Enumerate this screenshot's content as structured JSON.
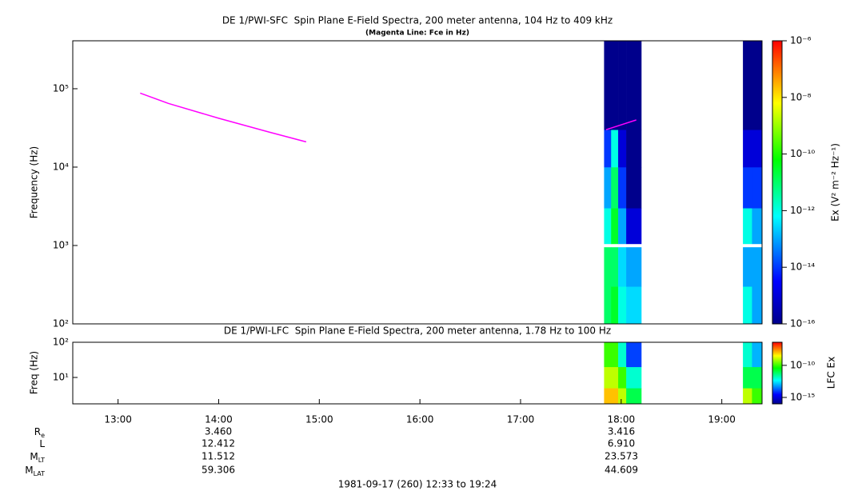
{
  "chart_data": [
    {
      "type": "spectrogram",
      "title": "DE 1/PWI-SFC  Spin Plane E-Field Spectra, 200 meter antenna, 104 Hz to 409 kHz",
      "subtitle": "(Magenta Line: Fce in Hz)",
      "ylabel": "Frequency (Hz)",
      "xlim": [
        12.55,
        19.4
      ],
      "ylim": [
        100,
        409000
      ],
      "log_y": true,
      "yticks": [
        {
          "value": 100,
          "label": "10²"
        },
        {
          "value": 1000,
          "label": "10³"
        },
        {
          "value": 10000,
          "label": "10⁴"
        },
        {
          "value": 100000,
          "label": "10⁵"
        }
      ],
      "colorbar": {
        "label": "Ex (V² m⁻² Hz⁻¹)",
        "lim": [
          1e-16,
          1e-06
        ],
        "ticks": [
          {
            "value": 1e-16,
            "label": "10⁻¹⁶"
          },
          {
            "value": 1e-14,
            "label": "10⁻¹⁴"
          },
          {
            "value": 1e-12,
            "label": "10⁻¹²"
          },
          {
            "value": 1e-10,
            "label": "10⁻¹⁰"
          },
          {
            "value": 1e-08,
            "label": "10⁻⁸"
          },
          {
            "value": 1e-06,
            "label": "10⁻⁶"
          }
        ]
      },
      "blocks": [
        {
          "time_bins": [
            17.83,
            17.9,
            17.97,
            18.05,
            18.2
          ],
          "freq_bins": [
            100,
            300,
            950
          ],
          "values": [
            [
              1e-11,
              3e-11,
              1e-12,
              3e-13
            ],
            [
              1e-11,
              1e-11,
              3e-13,
              1e-13
            ]
          ]
        },
        {
          "time_bins": [
            17.83,
            17.9,
            17.97,
            18.05,
            18.2
          ],
          "freq_bins": [
            1050,
            3000,
            10000,
            30000,
            409000
          ],
          "values": [
            [
              1e-12,
              3e-11,
              1e-13,
              1e-15
            ],
            [
              1e-13,
              1e-11,
              1e-14,
              1e-16
            ],
            [
              1e-14,
              1e-12,
              1e-15,
              1e-16
            ],
            [
              1e-16,
              1e-16,
              1e-16,
              1e-16
            ]
          ]
        },
        {
          "time_bins": [
            19.21,
            19.3,
            19.4
          ],
          "freq_bins": [
            100,
            300,
            950
          ],
          "values": [
            [
              1e-12,
              1e-13
            ],
            [
              1e-13,
              1e-13
            ]
          ]
        },
        {
          "time_bins": [
            19.21,
            19.3,
            19.4
          ],
          "freq_bins": [
            1050,
            3000,
            10000,
            30000,
            409000
          ],
          "values": [
            [
              1e-12,
              1e-13
            ],
            [
              1e-14,
              1e-14
            ],
            [
              1e-15,
              1e-15
            ],
            [
              1e-16,
              1e-16
            ]
          ]
        }
      ],
      "series": [
        {
          "color": "#ff00ff",
          "x": [
            13.22,
            13.5,
            14.0,
            14.5,
            14.87,
            null,
            17.85,
            18.15
          ],
          "values": [
            88000,
            65000,
            42000,
            28000,
            21000,
            null,
            30000,
            40000
          ]
        }
      ]
    },
    {
      "type": "spectrogram",
      "title": "DE 1/PWI-LFC  Spin Plane E-Field Spectra, 200 meter antenna, 1.78 Hz to 100 Hz",
      "ylabel": "Freq (Hz)",
      "xlim": [
        12.55,
        19.4
      ],
      "ylim": [
        1.78,
        100
      ],
      "log_y": true,
      "yticks": [
        {
          "value": 10,
          "label": "10¹"
        },
        {
          "value": 100,
          "label": "10²"
        }
      ],
      "xticks": [
        {
          "value": 13,
          "label": "13:00"
        },
        {
          "value": 14,
          "label": "14:00"
        },
        {
          "value": 15,
          "label": "15:00"
        },
        {
          "value": 16,
          "label": "16:00"
        },
        {
          "value": 17,
          "label": "17:00"
        },
        {
          "value": 18,
          "label": "18:00"
        },
        {
          "value": 19,
          "label": "19:00"
        }
      ],
      "colorbar": {
        "label": "LFC Ex",
        "lim": [
          1e-16,
          4e-07
        ],
        "ticks": [
          {
            "value": 1e-15,
            "label": "10⁻¹⁵"
          },
          {
            "value": 1e-10,
            "label": "10⁻¹⁰"
          }
        ]
      },
      "blocks": [
        {
          "time_bins": [
            17.83,
            17.9,
            17.97,
            18.05,
            18.2
          ],
          "freq_bins": [
            1.78,
            5,
            20,
            100
          ],
          "values": [
            [
              1e-08,
              1e-08,
              1e-09,
              1e-11
            ],
            [
              1e-09,
              1e-09,
              1e-10,
              1e-12
            ],
            [
              1e-10,
              1e-10,
              1e-12,
              1e-14
            ]
          ]
        },
        {
          "time_bins": [
            19.21,
            19.3,
            19.4
          ],
          "freq_bins": [
            1.78,
            5,
            20,
            100
          ],
          "values": [
            [
              1e-09,
              1e-10
            ],
            [
              1e-11,
              1e-11
            ],
            [
              1e-12,
              1e-13
            ]
          ]
        }
      ]
    }
  ],
  "ephemeris": [
    {
      "label": "R",
      "sub": "e",
      "values": [
        "3.460",
        "3.416"
      ]
    },
    {
      "label": "L",
      "values": [
        "12.412",
        "6.910"
      ]
    },
    {
      "label": "M",
      "sub": "LT",
      "values": [
        "11.512",
        "23.573"
      ]
    },
    {
      "label": "M",
      "sub": "LAT",
      "values": [
        "59.306",
        "44.609"
      ]
    }
  ],
  "footer": "1981-09-17 (260) 12:33 to 19:24"
}
